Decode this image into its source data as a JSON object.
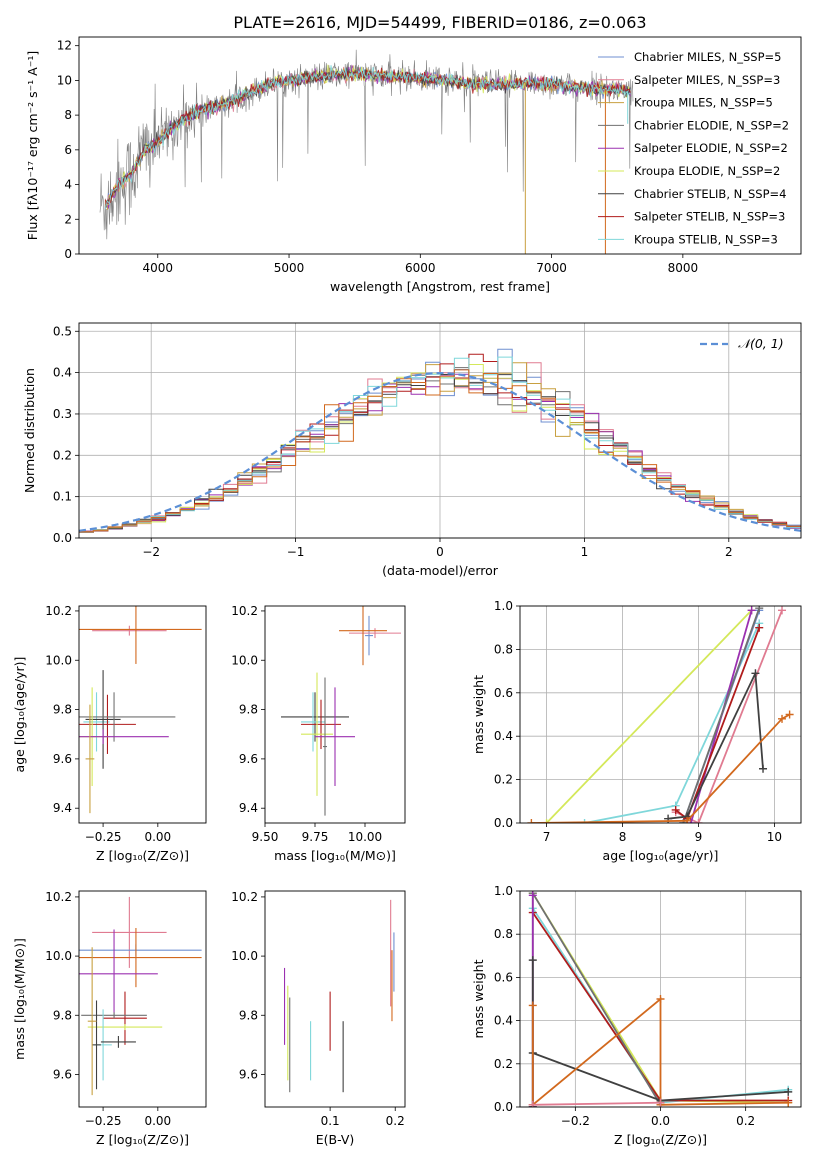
{
  "figure_title": "PLATE=2616, MJD=54499, FIBERID=0186, z=0.063",
  "colors": {
    "grey": "#808080",
    "c1": "#6f8fd0",
    "c2": "#e07b91",
    "c3": "#c8a040",
    "c4": "#707070",
    "c5": "#9b30b0",
    "c6": "#d4e85a",
    "c7": "#404040",
    "c8": "#b01c1c",
    "c9": "#7fd7da",
    "orange": "#d2691e",
    "gauss": "#5b8fd6"
  },
  "chart_data": [
    {
      "id": "spectrum",
      "type": "line",
      "title": "PLATE=2616, MJD=54499, FIBERID=0186, z=0.063",
      "xlabel": "wavelength [Angstrom, rest frame]",
      "ylabel": "Flux [fλ10⁻¹⁷ erg cm⁻² s⁻¹ A⁻¹]",
      "xlim": [
        3400,
        8900
      ],
      "ylim": [
        0,
        12.5
      ],
      "xticks": [
        4000,
        5000,
        6000,
        7000,
        8000
      ],
      "yticks": [
        0,
        2,
        4,
        6,
        8,
        10,
        12
      ],
      "grid": false,
      "legend_position": "right",
      "series": [
        {
          "name": "Chabrier MILES, N_SSP=5",
          "color": "#6f8fd0"
        },
        {
          "name": "Salpeter MILES, N_SSP=3",
          "color": "#e07b91"
        },
        {
          "name": "Kroupa MILES, N_SSP=5",
          "color": "#c8a040"
        },
        {
          "name": "Chabrier ELODIE, N_SSP=2",
          "color": "#707070"
        },
        {
          "name": "Salpeter ELODIE, N_SSP=2",
          "color": "#9b30b0"
        },
        {
          "name": "Kroupa ELODIE, N_SSP=2",
          "color": "#d4e85a"
        },
        {
          "name": "Chabrier STELIB, N_SSP=4",
          "color": "#404040"
        },
        {
          "name": "Salpeter STELIB, N_SSP=3",
          "color": "#b01c1c"
        },
        {
          "name": "Kroupa STELIB, N_SSP=3",
          "color": "#7fd7da"
        }
      ],
      "continuum": {
        "x": [
          3600,
          3700,
          3800,
          3900,
          4000,
          4100,
          4200,
          4300,
          4500,
          4700,
          4900,
          5200,
          5500,
          5800,
          6100,
          6400,
          6700,
          7000,
          7200,
          7400,
          7600
        ],
        "y": [
          2.8,
          4.0,
          4.6,
          6.0,
          6.4,
          7.2,
          7.8,
          8.2,
          8.6,
          9.3,
          9.9,
          10.2,
          10.4,
          10.2,
          10.1,
          9.8,
          9.8,
          9.8,
          9.6,
          9.5,
          9.4
        ]
      }
    },
    {
      "id": "residuals",
      "type": "line",
      "xlabel": "(data-model)/error",
      "ylabel": "Normed distribution",
      "xlim": [
        -2.5,
        2.5
      ],
      "ylim": [
        0,
        0.52
      ],
      "xticks": [
        -2,
        -1,
        0,
        1,
        2
      ],
      "yticks": [
        0.0,
        0.1,
        0.2,
        0.3,
        0.4,
        0.5
      ],
      "grid": true,
      "legend_position": "upper right",
      "legend": "𝒩(0, 1)"
    },
    {
      "id": "age_vs_Z",
      "type": "scatter",
      "xlabel": "Z [log₁₀(Z/Z⊙)]",
      "ylabel": "age  [log₁₀(age/yr)]",
      "xlim": [
        -0.36,
        0.22
      ],
      "ylim": [
        9.34,
        10.22
      ],
      "xticks": [
        -0.25,
        0.0
      ],
      "yticks": [
        9.4,
        9.6,
        9.8,
        10.0,
        10.2
      ],
      "points": [
        {
          "x": -0.13,
          "xerr": 0.17,
          "y": 10.12,
          "yerr": 0.02,
          "color": "#e07b91"
        },
        {
          "x": -0.1,
          "xerr": 0.3,
          "y": 10.125,
          "yerr": 0.14,
          "color": "#d2691e"
        },
        {
          "x": -0.28,
          "xerr": 0.06,
          "y": 9.75,
          "yerr": 0.12,
          "color": "#7fd7da"
        },
        {
          "x": -0.23,
          "xerr": 0.13,
          "y": 9.74,
          "yerr": 0.12,
          "color": "#b01c1c"
        },
        {
          "x": -0.25,
          "xerr": 0.08,
          "y": 9.76,
          "yerr": 0.2,
          "color": "#404040"
        },
        {
          "x": -0.2,
          "xerr": 0.28,
          "y": 9.77,
          "yerr": 0.1,
          "color": "#707070"
        },
        {
          "x": -0.3,
          "xerr": 0.08,
          "y": 9.69,
          "yerr": 0.2,
          "color": "#d4e85a"
        },
        {
          "x": -0.25,
          "xerr": 0.3,
          "y": 9.69,
          "yerr": 0.03,
          "color": "#9b30b0"
        },
        {
          "x": -0.31,
          "xerr": 0.02,
          "y": 9.6,
          "yerr": 0.22,
          "color": "#c8a040"
        }
      ]
    },
    {
      "id": "age_vs_mass",
      "type": "scatter",
      "xlabel": "mass [log₁₀(M/M⊙)]",
      "ylabel": "",
      "xlim": [
        9.5,
        10.2
      ],
      "ylim": [
        9.34,
        10.22
      ],
      "xticks": [
        9.5,
        9.75,
        10.0
      ],
      "yticks": [
        9.4,
        9.6,
        9.8,
        10.0,
        10.2
      ],
      "points": [
        {
          "x": 10.02,
          "xerr": 0.02,
          "y": 10.1,
          "yerr": 0.08,
          "color": "#6f8fd0"
        },
        {
          "x": 10.05,
          "xerr": 0.13,
          "y": 10.11,
          "yerr": 0.02,
          "color": "#e07b91"
        },
        {
          "x": 9.99,
          "xerr": 0.12,
          "y": 10.12,
          "yerr": 0.14,
          "color": "#d2691e"
        },
        {
          "x": 9.75,
          "xerr": 0.17,
          "y": 9.77,
          "yerr": 0.1,
          "color": "#404040"
        },
        {
          "x": 9.74,
          "xerr": 0.06,
          "y": 9.75,
          "yerr": 0.12,
          "color": "#7fd7da"
        },
        {
          "x": 9.78,
          "xerr": 0.1,
          "y": 9.74,
          "yerr": 0.1,
          "color": "#b01c1c"
        },
        {
          "x": 9.76,
          "xerr": 0.08,
          "y": 9.7,
          "yerr": 0.25,
          "color": "#d4e85a"
        },
        {
          "x": 9.85,
          "xerr": 0.1,
          "y": 9.69,
          "yerr": 0.2,
          "color": "#9b30b0"
        },
        {
          "x": 9.8,
          "xerr": 0.01,
          "y": 9.65,
          "yerr": 0.28,
          "color": "#707070"
        }
      ]
    },
    {
      "id": "massweight_vs_age",
      "type": "line",
      "xlabel": "age  [log₁₀(age/yr)]",
      "ylabel": "mass weight",
      "xlim": [
        6.65,
        10.35
      ],
      "ylim": [
        0,
        1.0
      ],
      "xticks": [
        7,
        8,
        9,
        10
      ],
      "yticks": [
        0.0,
        0.2,
        0.4,
        0.6,
        0.8,
        1.0
      ],
      "grid": true,
      "series": [
        {
          "color": "#d4e85a",
          "x": [
            7.0,
            9.7
          ],
          "y": [
            0.0,
            0.98
          ]
        },
        {
          "color": "#e07b91",
          "x": [
            8.7,
            9.0,
            10.1
          ],
          "y": [
            0.05,
            0.0,
            0.98
          ]
        },
        {
          "color": "#7fd7da",
          "x": [
            7.5,
            8.7,
            9.8
          ],
          "y": [
            0.0,
            0.08,
            0.92
          ]
        },
        {
          "color": "#6f8fd0",
          "x": [
            8.8,
            9.8
          ],
          "y": [
            0.0,
            0.98
          ]
        },
        {
          "color": "#9b30b0",
          "x": [
            8.9,
            9.7
          ],
          "y": [
            0.0,
            0.98
          ]
        },
        {
          "color": "#707070",
          "x": [
            8.8,
            9.8
          ],
          "y": [
            0.0,
            0.99
          ]
        },
        {
          "color": "#b01c1c",
          "x": [
            8.7,
            8.85,
            9.8
          ],
          "y": [
            0.06,
            0.02,
            0.9
          ]
        },
        {
          "color": "#404040",
          "x": [
            8.6,
            8.85,
            9.75,
            9.85
          ],
          "y": [
            0.02,
            0.03,
            0.69,
            0.25
          ]
        },
        {
          "color": "#d2691e",
          "x": [
            6.8,
            8.85,
            10.1,
            10.2
          ],
          "y": [
            0.0,
            0.01,
            0.48,
            0.5
          ]
        }
      ]
    },
    {
      "id": "mass_vs_Z",
      "type": "scatter",
      "xlabel": "Z [log₁₀(Z/Z⊙)]",
      "ylabel": "mass [log₁₀(M/M⊙)]",
      "xlim": [
        -0.36,
        0.22
      ],
      "ylim": [
        9.49,
        10.22
      ],
      "xticks": [
        -0.25,
        0.0
      ],
      "yticks": [
        9.6,
        9.8,
        10.0,
        10.2
      ],
      "points": [
        {
          "x": -0.13,
          "xerr": 0.17,
          "y": 10.08,
          "yerr": 0.12,
          "color": "#e07b91"
        },
        {
          "x": -0.1,
          "xerr": 0.3,
          "y": 10.02,
          "yerr": 0.02,
          "color": "#6f8fd0"
        },
        {
          "x": -0.1,
          "xerr": 0.3,
          "y": 9.995,
          "yerr": 0.1,
          "color": "#d2691e"
        },
        {
          "x": -0.2,
          "xerr": 0.2,
          "y": 9.94,
          "yerr": 0.15,
          "color": "#9b30b0"
        },
        {
          "x": -0.15,
          "xerr": 0.1,
          "y": 9.79,
          "yerr": 0.09,
          "color": "#b01c1c"
        },
        {
          "x": -0.15,
          "xerr": 0.17,
          "y": 9.76,
          "yerr": 0.01,
          "color": "#d4e85a"
        },
        {
          "x": -0.2,
          "xerr": 0.15,
          "y": 9.8,
          "yerr": 0.01,
          "color": "#707070"
        },
        {
          "x": -0.25,
          "xerr": 0.04,
          "y": 9.7,
          "yerr": 0.12,
          "color": "#7fd7da"
        },
        {
          "x": -0.18,
          "xerr": 0.08,
          "y": 9.71,
          "yerr": 0.02,
          "color": "#404040"
        },
        {
          "x": -0.28,
          "xerr": 0.02,
          "y": 9.7,
          "yerr": 0.15,
          "color": "#404040"
        },
        {
          "x": -0.3,
          "xerr": 0.02,
          "y": 9.78,
          "yerr": 0.25,
          "color": "#c8a040"
        }
      ]
    },
    {
      "id": "mass_vs_ebv",
      "type": "scatter",
      "xlabel": "E(B-V)",
      "ylabel": "",
      "xlim": [
        0.0,
        0.215
      ],
      "ylim": [
        9.49,
        10.22
      ],
      "xticks": [
        0.1,
        0.2
      ],
      "yticks": [
        9.6,
        9.8,
        10.0,
        10.2
      ],
      "points": [
        {
          "x": 0.03,
          "y": 9.83,
          "yerr": 0.13,
          "color": "#9b30b0"
        },
        {
          "x": 0.035,
          "y": 9.74,
          "yerr": 0.16,
          "color": "#d4e85a"
        },
        {
          "x": 0.038,
          "y": 9.7,
          "yerr": 0.16,
          "color": "#707070"
        },
        {
          "x": 0.07,
          "y": 9.68,
          "yerr": 0.1,
          "color": "#7fd7da"
        },
        {
          "x": 0.1,
          "y": 9.78,
          "yerr": 0.1,
          "color": "#b01c1c"
        },
        {
          "x": 0.12,
          "y": 9.66,
          "yerr": 0.12,
          "color": "#404040"
        },
        {
          "x": 0.193,
          "y": 10.01,
          "yerr": 0.18,
          "color": "#e07b91"
        },
        {
          "x": 0.195,
          "y": 9.9,
          "yerr": 0.12,
          "color": "#d2691e"
        },
        {
          "x": 0.198,
          "y": 9.98,
          "yerr": 0.1,
          "color": "#6f8fd0"
        }
      ]
    },
    {
      "id": "massweight_vs_Z",
      "type": "line",
      "xlabel": "Z [log₁₀(Z/Z⊙)]",
      "ylabel": "mass weight",
      "xlim": [
        -0.33,
        0.33
      ],
      "ylim": [
        0,
        1.0
      ],
      "xticks": [
        -0.2,
        0.0,
        0.2
      ],
      "yticks": [
        0.0,
        0.2,
        0.4,
        0.6,
        0.8,
        1.0
      ],
      "grid": true,
      "series": [
        {
          "color": "#d4e85a",
          "x": [
            -0.3,
            0.0,
            0.3
          ],
          "y": [
            0.99,
            0.03,
            0.02
          ]
        },
        {
          "color": "#7fd7da",
          "x": [
            -0.3,
            0.0,
            0.3
          ],
          "y": [
            0.92,
            0.02,
            0.08
          ]
        },
        {
          "color": "#b01c1c",
          "x": [
            -0.3,
            0.0,
            0.3
          ],
          "y": [
            0.9,
            0.03,
            0.03
          ]
        },
        {
          "color": "#707070",
          "x": [
            -0.3,
            -0.3,
            0.0
          ],
          "y": [
            0.0,
            0.99,
            0.01
          ]
        },
        {
          "color": "#9b30b0",
          "x": [
            -0.3,
            -0.3
          ],
          "y": [
            0.0,
            0.98
          ]
        },
        {
          "color": "#404040",
          "x": [
            -0.3,
            0.0,
            0.3
          ],
          "y": [
            0.25,
            0.03,
            0.07
          ]
        },
        {
          "color": "#404040",
          "x": [
            -0.3,
            -0.3
          ],
          "y": [
            0.68,
            0.0
          ]
        },
        {
          "color": "#d2691e",
          "x": [
            -0.3,
            -0.3,
            0.0,
            0.0,
            0.3
          ],
          "y": [
            0.47,
            0.01,
            0.5,
            0.01,
            0.02
          ]
        },
        {
          "color": "#e07b91",
          "x": [
            -0.3,
            0.0
          ],
          "y": [
            0.01,
            0.02
          ]
        }
      ]
    }
  ]
}
